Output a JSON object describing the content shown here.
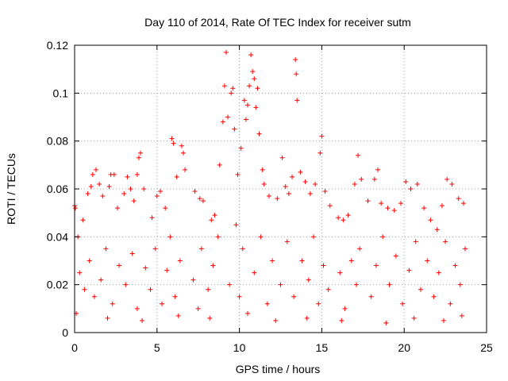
{
  "chart_data": {
    "type": "scatter",
    "title": "Day 110 of 2014, Rate Of TEC Index for receiver sutm",
    "xlabel": "GPS time / hours",
    "ylabel": "ROTI / TECUs",
    "xlim": [
      0,
      25
    ],
    "ylim": [
      0,
      0.12
    ],
    "x_ticks": [
      "0",
      "5",
      "10",
      "15",
      "20",
      "25"
    ],
    "y_ticks": [
      "0",
      "0.02",
      "0.04",
      "0.06",
      "0.08",
      "0.1",
      "0.12"
    ],
    "grid": true,
    "marker": "+",
    "series": [
      {
        "color": "#ff0000",
        "points": [
          [
            0.0,
            0.053
          ],
          [
            0.05,
            0.052
          ],
          [
            0.2,
            0.04
          ],
          [
            0.5,
            0.047
          ],
          [
            0.8,
            0.058
          ],
          [
            1.0,
            0.061
          ],
          [
            1.1,
            0.066
          ],
          [
            1.3,
            0.068
          ],
          [
            1.5,
            0.062
          ],
          [
            1.7,
            0.057
          ],
          [
            2.1,
            0.061
          ],
          [
            2.2,
            0.066
          ],
          [
            2.4,
            0.066
          ],
          [
            2.6,
            0.052
          ],
          [
            3.0,
            0.058
          ],
          [
            3.2,
            0.065
          ],
          [
            3.4,
            0.06
          ],
          [
            3.6,
            0.055
          ],
          [
            3.8,
            0.066
          ],
          [
            3.9,
            0.073
          ],
          [
            4.0,
            0.075
          ],
          [
            4.2,
            0.06
          ],
          [
            4.7,
            0.048
          ],
          [
            5.0,
            0.057
          ],
          [
            5.2,
            0.059
          ],
          [
            5.5,
            0.052
          ],
          [
            5.9,
            0.081
          ],
          [
            6.0,
            0.079
          ],
          [
            6.2,
            0.065
          ],
          [
            6.5,
            0.078
          ],
          [
            6.6,
            0.075
          ],
          [
            6.7,
            0.068
          ],
          [
            7.3,
            0.059
          ],
          [
            7.6,
            0.056
          ],
          [
            7.8,
            0.055
          ],
          [
            8.3,
            0.047
          ],
          [
            8.5,
            0.049
          ],
          [
            8.8,
            0.07
          ],
          [
            9.0,
            0.088
          ],
          [
            9.1,
            0.103
          ],
          [
            9.2,
            0.117
          ],
          [
            9.3,
            0.09
          ],
          [
            9.5,
            0.1
          ],
          [
            9.6,
            0.102
          ],
          [
            9.7,
            0.085
          ],
          [
            9.9,
            0.066
          ],
          [
            10.1,
            0.077
          ],
          [
            10.3,
            0.097
          ],
          [
            10.4,
            0.089
          ],
          [
            10.5,
            0.095
          ],
          [
            10.6,
            0.103
          ],
          [
            10.7,
            0.116
          ],
          [
            10.8,
            0.109
          ],
          [
            10.9,
            0.106
          ],
          [
            11.0,
            0.094
          ],
          [
            11.1,
            0.102
          ],
          [
            11.2,
            0.083
          ],
          [
            11.4,
            0.068
          ],
          [
            11.5,
            0.062
          ],
          [
            11.8,
            0.057
          ],
          [
            12.3,
            0.056
          ],
          [
            12.6,
            0.073
          ],
          [
            12.8,
            0.061
          ],
          [
            13.0,
            0.058
          ],
          [
            13.2,
            0.065
          ],
          [
            13.4,
            0.114
          ],
          [
            13.45,
            0.108
          ],
          [
            13.5,
            0.097
          ],
          [
            13.7,
            0.067
          ],
          [
            14.0,
            0.063
          ],
          [
            14.3,
            0.058
          ],
          [
            14.6,
            0.062
          ],
          [
            14.9,
            0.075
          ],
          [
            15.0,
            0.082
          ],
          [
            15.2,
            0.059
          ],
          [
            15.5,
            0.053
          ],
          [
            16.0,
            0.048
          ],
          [
            16.3,
            0.047
          ],
          [
            16.6,
            0.049
          ],
          [
            17.0,
            0.062
          ],
          [
            17.2,
            0.074
          ],
          [
            17.4,
            0.064
          ],
          [
            17.8,
            0.055
          ],
          [
            18.2,
            0.064
          ],
          [
            18.4,
            0.068
          ],
          [
            18.6,
            0.054
          ],
          [
            19.0,
            0.052
          ],
          [
            19.4,
            0.051
          ],
          [
            19.8,
            0.054
          ],
          [
            20.1,
            0.063
          ],
          [
            20.4,
            0.06
          ],
          [
            20.8,
            0.062
          ],
          [
            21.2,
            0.052
          ],
          [
            21.6,
            0.047
          ],
          [
            22.0,
            0.043
          ],
          [
            22.3,
            0.053
          ],
          [
            22.6,
            0.064
          ],
          [
            22.9,
            0.062
          ],
          [
            23.3,
            0.056
          ],
          [
            23.6,
            0.054
          ],
          [
            0.3,
            0.025
          ],
          [
            0.6,
            0.018
          ],
          [
            0.9,
            0.03
          ],
          [
            1.2,
            0.015
          ],
          [
            1.6,
            0.022
          ],
          [
            1.9,
            0.035
          ],
          [
            2.3,
            0.012
          ],
          [
            2.7,
            0.028
          ],
          [
            3.1,
            0.02
          ],
          [
            3.5,
            0.033
          ],
          [
            3.8,
            0.01
          ],
          [
            4.3,
            0.027
          ],
          [
            4.6,
            0.018
          ],
          [
            4.9,
            0.035
          ],
          [
            5.3,
            0.012
          ],
          [
            5.6,
            0.026
          ],
          [
            5.8,
            0.04
          ],
          [
            6.1,
            0.015
          ],
          [
            6.4,
            0.03
          ],
          [
            7.2,
            0.022
          ],
          [
            7.5,
            0.01
          ],
          [
            7.7,
            0.035
          ],
          [
            8.1,
            0.018
          ],
          [
            8.4,
            0.028
          ],
          [
            8.7,
            0.04
          ],
          [
            9.4,
            0.02
          ],
          [
            9.8,
            0.045
          ],
          [
            10.0,
            0.015
          ],
          [
            10.2,
            0.035
          ],
          [
            10.9,
            0.025
          ],
          [
            11.3,
            0.04
          ],
          [
            11.7,
            0.012
          ],
          [
            12.0,
            0.03
          ],
          [
            12.5,
            0.02
          ],
          [
            12.9,
            0.038
          ],
          [
            13.3,
            0.015
          ],
          [
            13.8,
            0.03
          ],
          [
            14.2,
            0.022
          ],
          [
            14.5,
            0.04
          ],
          [
            14.8,
            0.012
          ],
          [
            15.1,
            0.028
          ],
          [
            15.4,
            0.018
          ],
          [
            16.1,
            0.025
          ],
          [
            16.4,
            0.01
          ],
          [
            16.8,
            0.03
          ],
          [
            17.1,
            0.02
          ],
          [
            17.3,
            0.035
          ],
          [
            18.0,
            0.015
          ],
          [
            18.3,
            0.028
          ],
          [
            18.7,
            0.04
          ],
          [
            19.1,
            0.02
          ],
          [
            19.5,
            0.032
          ],
          [
            19.9,
            0.012
          ],
          [
            20.3,
            0.026
          ],
          [
            20.7,
            0.038
          ],
          [
            21.0,
            0.018
          ],
          [
            21.4,
            0.03
          ],
          [
            21.8,
            0.015
          ],
          [
            22.1,
            0.025
          ],
          [
            22.5,
            0.038
          ],
          [
            22.8,
            0.012
          ],
          [
            23.1,
            0.028
          ],
          [
            23.4,
            0.02
          ],
          [
            23.7,
            0.035
          ],
          [
            0.1,
            0.008
          ],
          [
            2.0,
            0.006
          ],
          [
            4.1,
            0.005
          ],
          [
            6.3,
            0.007
          ],
          [
            8.2,
            0.006
          ],
          [
            10.5,
            0.008
          ],
          [
            12.2,
            0.005
          ],
          [
            14.1,
            0.006
          ],
          [
            16.2,
            0.005
          ],
          [
            18.9,
            0.004
          ],
          [
            20.6,
            0.006
          ],
          [
            22.4,
            0.005
          ],
          [
            23.5,
            0.007
          ]
        ]
      }
    ]
  }
}
